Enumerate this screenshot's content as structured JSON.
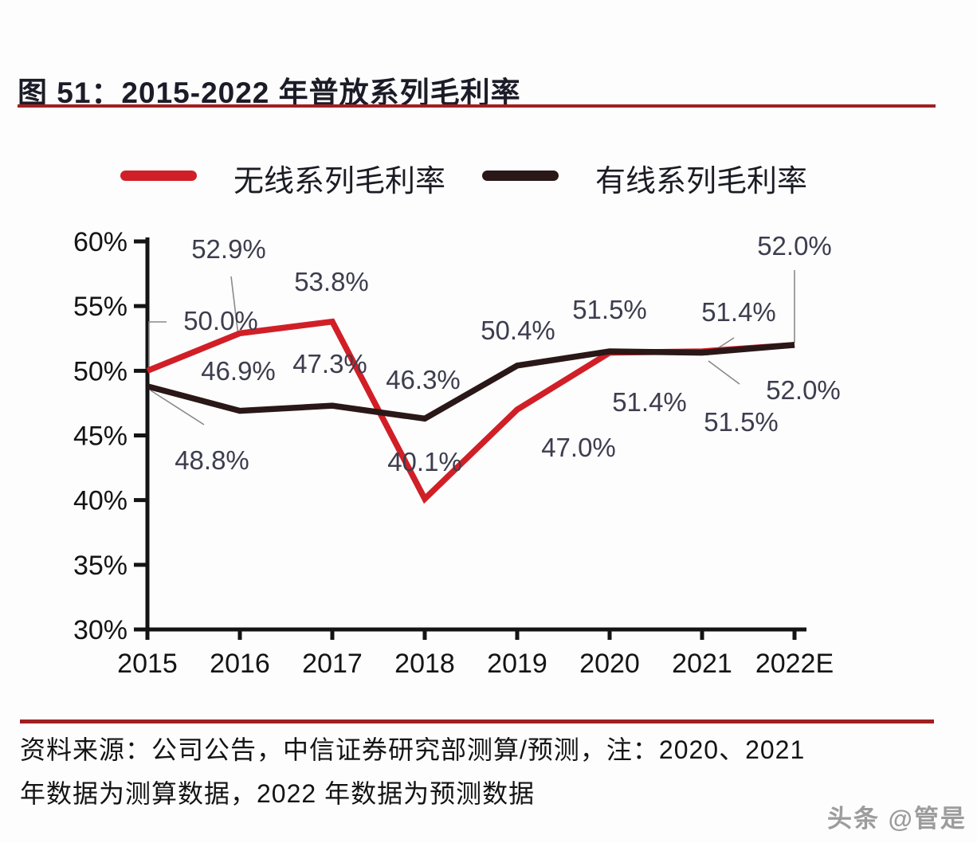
{
  "figure": {
    "title": "图 51：2015-2022 年普放系列毛利率"
  },
  "legend": {
    "wireless_label": "无线系列毛利率",
    "wired_label": "有线系列毛利率"
  },
  "chart_data": {
    "type": "line",
    "title": "图 51：2015-2022 年普放系列毛利率",
    "categories": [
      "2015",
      "2016",
      "2017",
      "2018",
      "2019",
      "2020",
      "2021",
      "2022E"
    ],
    "series": [
      {
        "name": "无线系列毛利率",
        "color": "#d11f27",
        "values": [
          50.0,
          52.9,
          53.8,
          40.1,
          47.0,
          51.4,
          51.5,
          52.0
        ],
        "labels": [
          "50.0%",
          "52.9%",
          "53.8%",
          "40.1%",
          "47.0%",
          "51.4%",
          "51.5%",
          "52.0%"
        ]
      },
      {
        "name": "有线系列毛利率",
        "color": "#2a1717",
        "values": [
          48.8,
          46.9,
          47.3,
          46.3,
          50.4,
          51.5,
          51.4,
          52.0
        ],
        "labels": [
          "48.8%",
          "46.9%",
          "47.3%",
          "46.3%",
          "50.4%",
          "51.5%",
          "51.4%",
          "52.0%"
        ]
      }
    ],
    "xlabel": "",
    "ylabel": "",
    "ylim": [
      30,
      60
    ],
    "ytick_step": 5,
    "ytick_labels": [
      "60%",
      "55%",
      "50%",
      "45%",
      "40%",
      "35%",
      "30%"
    ],
    "grid": false,
    "legend_position": "top"
  },
  "footer": {
    "source_line_1": "资料来源：公司公告，中信证券研究部测算/预测，注：2020、2021",
    "source_line_2": "年数据为测算数据，2022 年数据为预测数据",
    "watermark": "头条 @管是"
  },
  "colors": {
    "accent_red": "#d11f27",
    "dark_line": "#2a1717",
    "rule_red": "#9e2022",
    "data_label_text": "#3d3d4e",
    "axis_text": "#141414",
    "leader_line": "#8a8a8a"
  }
}
